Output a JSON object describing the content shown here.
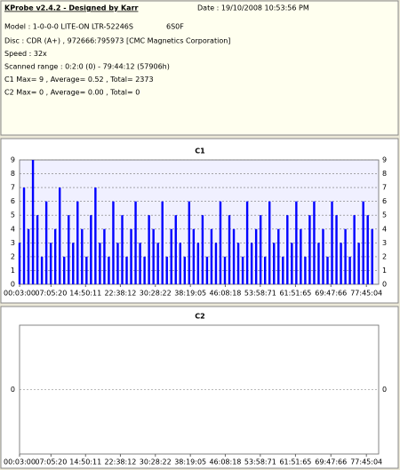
{
  "header": {
    "title": "KProbe v2.4.2 - Designed by Karr",
    "date": "Date : 19/10/2008 10:53:56 PM",
    "model": "Model : 1-0-0-0 LITE-ON LTR-52246S",
    "firmware": "6S0F",
    "lines": [
      "Disc : CDR (A+) , 972666:795973 [CMC Magnetics Corporation]",
      "Speed : 32x",
      "Scanned range : 0:2:0 (0) - 79:44:12 (57906h)",
      "C1 Max= 9 , Average= 0.52 , Total= 2373",
      "C2 Max= 0 , Average= 0.00 , Total= 0"
    ]
  },
  "chart_data": [
    {
      "type": "bar",
      "title": "C1",
      "color": "#0000ff",
      "grid": true,
      "x": [
        0.05,
        1.05,
        2.05,
        3.05,
        4.05,
        5.05,
        6.05,
        7.05,
        8.05,
        9.05,
        10.05,
        11.05,
        12.05,
        13.05,
        14.05,
        15.05,
        16.05,
        17.05,
        18.05,
        19.05,
        20.05,
        21.05,
        22.05,
        23.05,
        24.05,
        25.05,
        26.05,
        27.05,
        28.05,
        29.05,
        30.05,
        31.05,
        32.05,
        33.05,
        34.05,
        35.05,
        36.05,
        37.05,
        38.05,
        39.05,
        40.05,
        41.05,
        42.05,
        43.05,
        44.05,
        45.05,
        46.05,
        47.05,
        48.05,
        49.05,
        50.05,
        51.05,
        52.05,
        53.05,
        54.05,
        55.05,
        56.05,
        57.05,
        58.05,
        59.05,
        60.05,
        61.05,
        62.05,
        63.05,
        64.05,
        65.05,
        66.05,
        67.05,
        68.05,
        69.05,
        70.05,
        71.05,
        72.05,
        73.05,
        74.05,
        75.05,
        76.05,
        77.05,
        78.05,
        79.05
      ],
      "values": [
        3,
        7,
        4,
        9,
        5,
        2,
        6,
        3,
        4,
        7,
        2,
        5,
        3,
        6,
        4,
        2,
        5,
        7,
        3,
        4,
        2,
        6,
        3,
        5,
        2,
        4,
        6,
        3,
        2,
        5,
        4,
        3,
        6,
        2,
        4,
        5,
        3,
        2,
        6,
        4,
        3,
        5,
        2,
        4,
        3,
        6,
        2,
        5,
        4,
        3,
        2,
        6,
        3,
        4,
        5,
        2,
        6,
        3,
        4,
        2,
        5,
        3,
        6,
        4,
        2,
        5,
        6,
        3,
        4,
        2,
        6,
        5,
        3,
        4,
        2,
        5,
        3,
        6,
        5,
        4
      ],
      "xlim": [
        0.05,
        80.5
      ],
      "ylim": [
        0,
        9
      ],
      "yticks": [
        0,
        1,
        2,
        3,
        4,
        5,
        6,
        7,
        8,
        9
      ],
      "xticks": [
        {
          "value": 0.05,
          "label": "00:03:00"
        },
        {
          "value": 7.088,
          "label": "07:05:20"
        },
        {
          "value": 14.836,
          "label": "14:50:11"
        },
        {
          "value": 22.636,
          "label": "22:38:12"
        },
        {
          "value": 30.472,
          "label": "30:28:22"
        },
        {
          "value": 38.318,
          "label": "38:19:05"
        },
        {
          "value": 46.137,
          "label": "46:08:18"
        },
        {
          "value": 53.983,
          "label": "53:58:71"
        },
        {
          "value": 61.864,
          "label": "61:51:65"
        },
        {
          "value": 69.798,
          "label": "69:47:66"
        },
        {
          "value": 77.751,
          "label": "77:45:04"
        }
      ]
    },
    {
      "type": "bar",
      "title": "C2",
      "color": "#0000ff",
      "grid": true,
      "x": [
        0.05,
        1.05,
        2.05,
        3.05,
        4.05,
        5.05,
        6.05,
        7.05,
        8.05,
        9.05,
        10.05,
        11.05,
        12.05,
        13.05,
        14.05,
        15.05,
        16.05,
        17.05,
        18.05,
        19.05,
        20.05,
        21.05,
        22.05,
        23.05,
        24.05,
        25.05,
        26.05,
        27.05,
        28.05,
        29.05,
        30.05,
        31.05,
        32.05,
        33.05,
        34.05,
        35.05,
        36.05,
        37.05,
        38.05,
        39.05,
        40.05,
        41.05,
        42.05,
        43.05,
        44.05,
        45.05,
        46.05,
        47.05,
        48.05,
        49.05,
        50.05,
        51.05,
        52.05,
        53.05,
        54.05,
        55.05,
        56.05,
        57.05,
        58.05,
        59.05,
        60.05,
        61.05,
        62.05,
        63.05,
        64.05,
        65.05,
        66.05,
        67.05,
        68.05,
        69.05,
        70.05,
        71.05,
        72.05,
        73.05,
        74.05,
        75.05,
        76.05,
        77.05,
        78.05,
        79.05
      ],
      "values": [
        0,
        0,
        0,
        0,
        0,
        0,
        0,
        0,
        0,
        0,
        0,
        0,
        0,
        0,
        0,
        0,
        0,
        0,
        0,
        0,
        0,
        0,
        0,
        0,
        0,
        0,
        0,
        0,
        0,
        0,
        0,
        0,
        0,
        0,
        0,
        0,
        0,
        0,
        0,
        0,
        0,
        0,
        0,
        0,
        0,
        0,
        0,
        0,
        0,
        0,
        0,
        0,
        0,
        0,
        0,
        0,
        0,
        0,
        0,
        0,
        0,
        0,
        0,
        0,
        0,
        0,
        0,
        0,
        0,
        0,
        0,
        0,
        0,
        0,
        0,
        0,
        0,
        0,
        0,
        0
      ],
      "xlim": [
        0.05,
        80.5
      ],
      "ylim": [
        -1,
        1
      ],
      "yticks": [
        0
      ],
      "xticks": [
        {
          "value": 0.05,
          "label": "00:03:00"
        },
        {
          "value": 7.088,
          "label": "07:05:20"
        },
        {
          "value": 14.836,
          "label": "14:50:11"
        },
        {
          "value": 22.636,
          "label": "22:38:12"
        },
        {
          "value": 30.472,
          "label": "30:28:22"
        },
        {
          "value": 38.318,
          "label": "38:19:05"
        },
        {
          "value": 46.137,
          "label": "46:08:18"
        },
        {
          "value": 53.983,
          "label": "53:58:71"
        },
        {
          "value": 61.864,
          "label": "61:51:65"
        },
        {
          "value": 69.798,
          "label": "69:47:66"
        },
        {
          "value": 77.751,
          "label": "77:45:04"
        }
      ]
    }
  ]
}
